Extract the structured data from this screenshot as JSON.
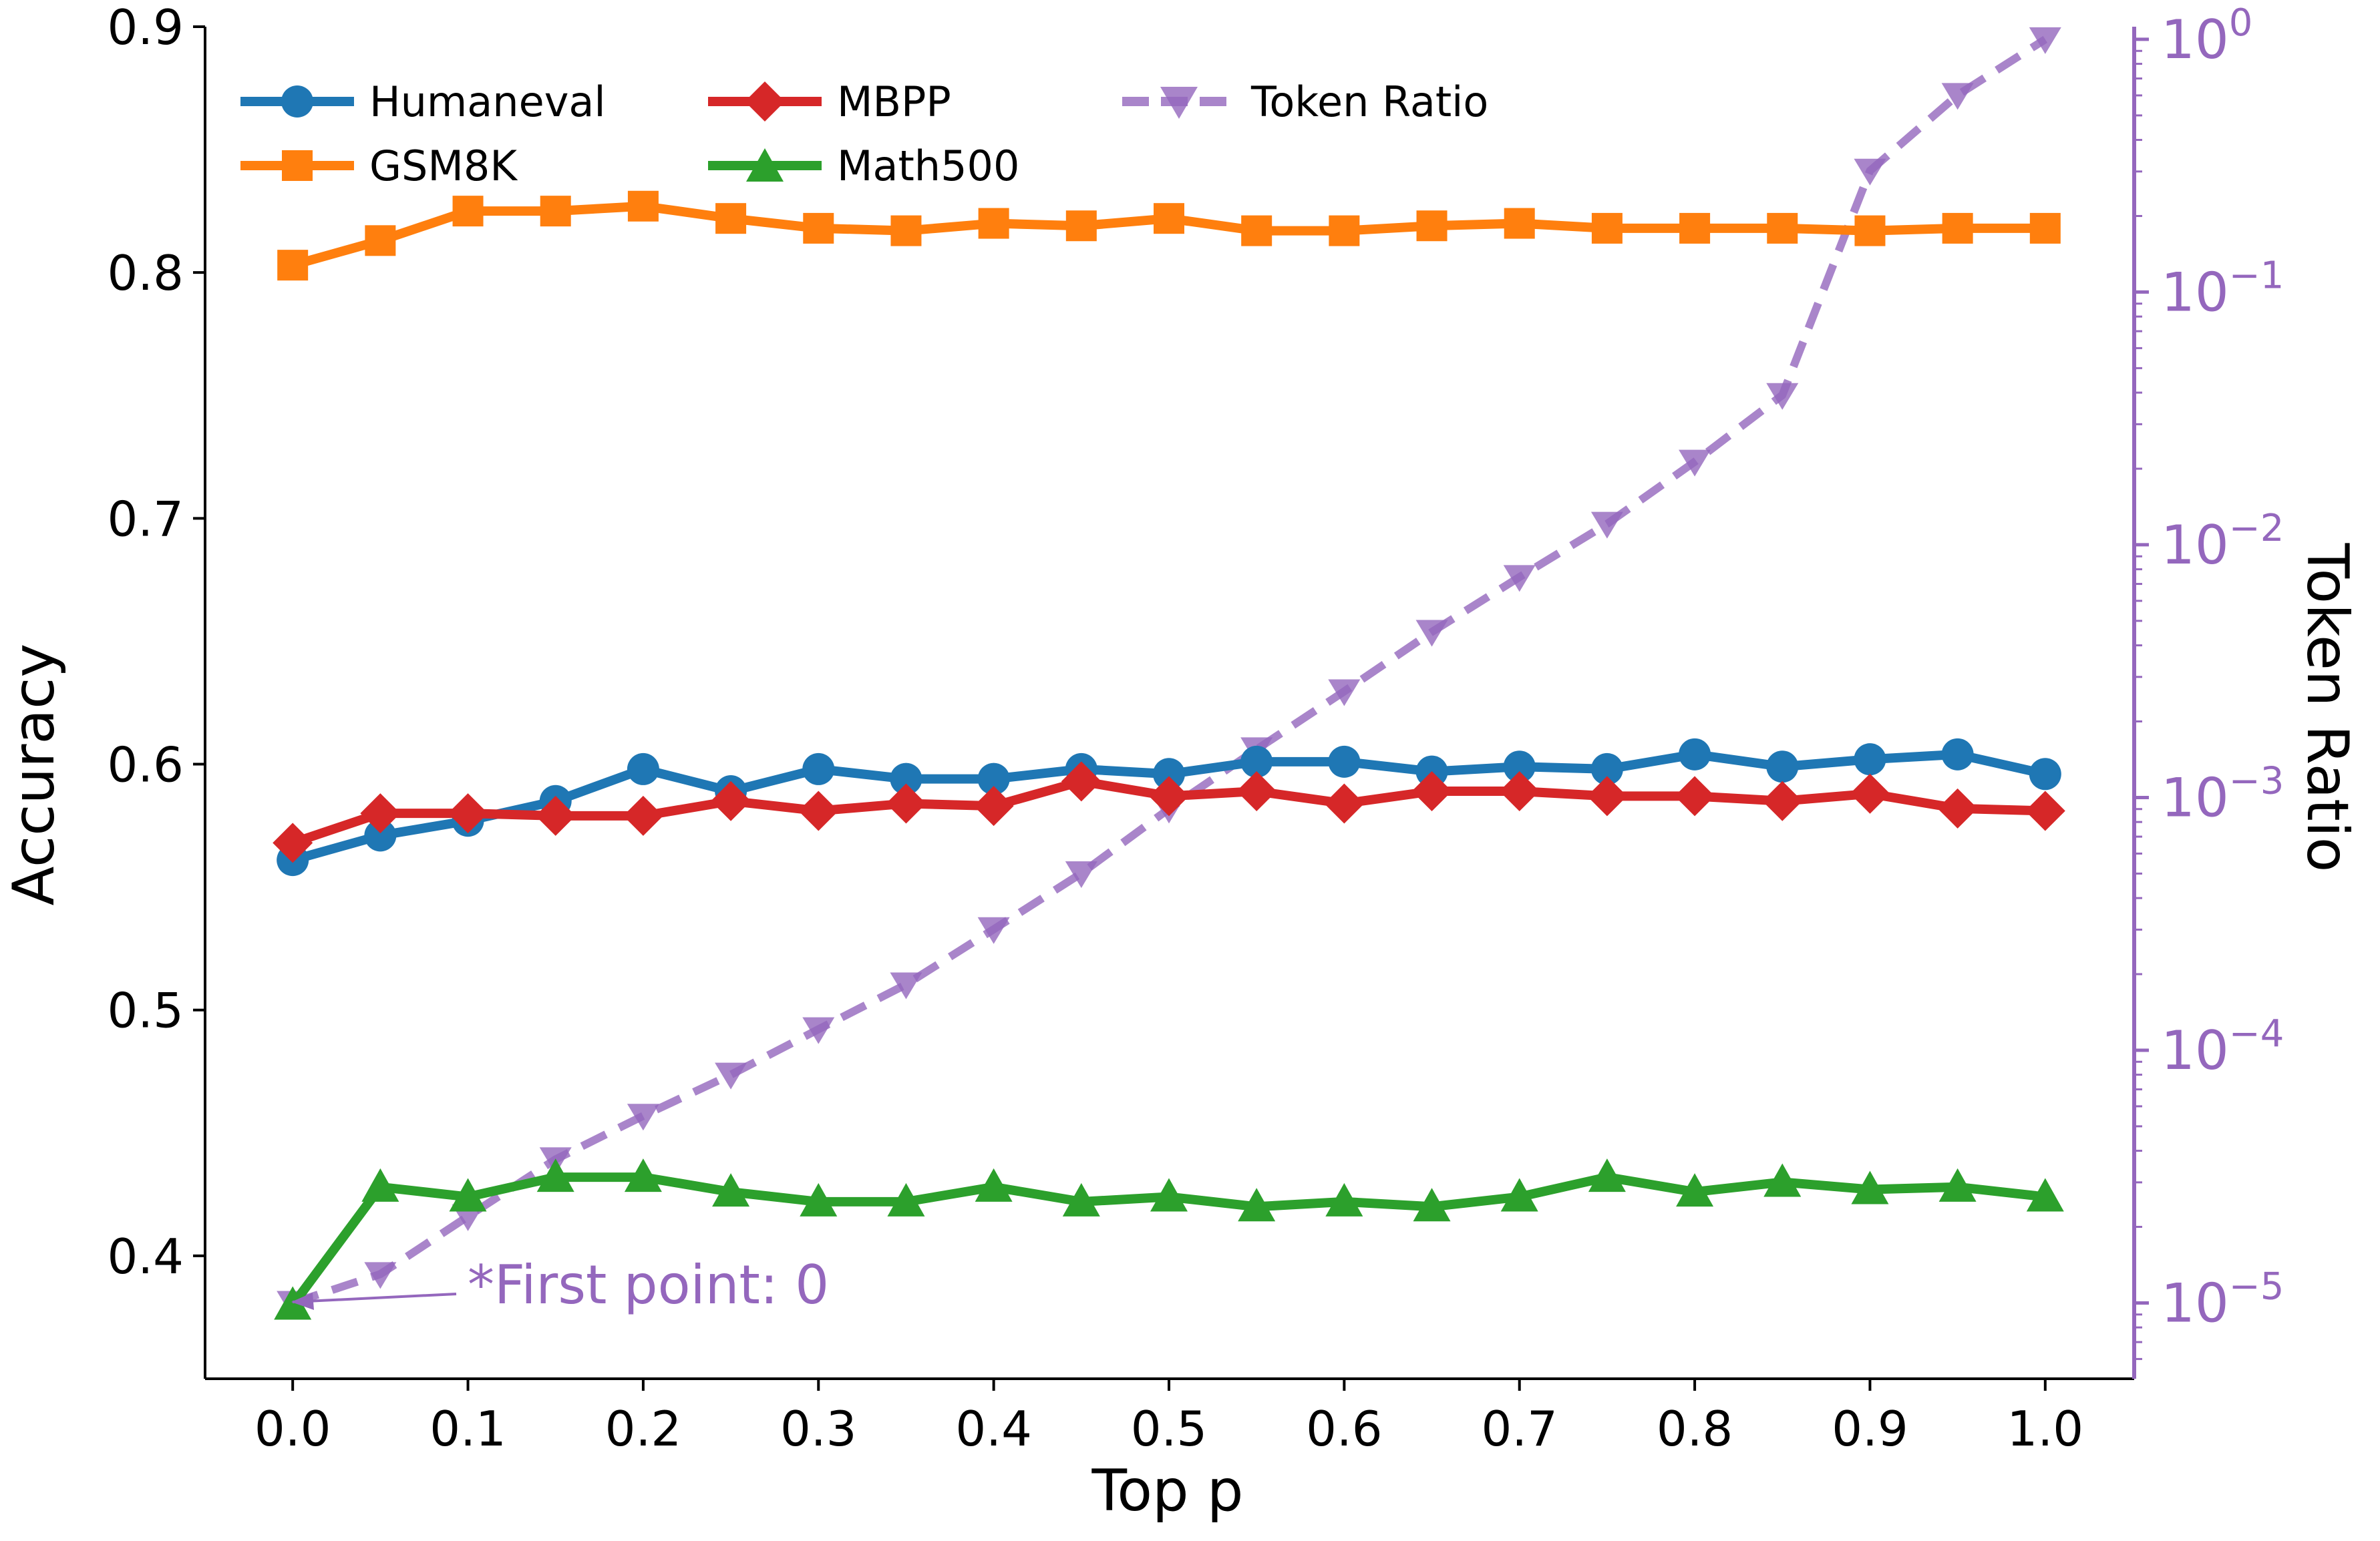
{
  "chart_data": {
    "type": "line",
    "title": "",
    "xlabel": "Top p",
    "ylabel": "Accuracy",
    "y2label": "Token Ratio",
    "xlim": [
      -0.05,
      1.05
    ],
    "ylim": [
      0.35,
      0.9
    ],
    "y2lim_log10": [
      -5.3,
      0.05
    ],
    "x_ticks": [
      "0.0",
      "0.1",
      "0.2",
      "0.3",
      "0.4",
      "0.5",
      "0.6",
      "0.7",
      "0.8",
      "0.9",
      "1.0"
    ],
    "y_ticks": [
      "0.4",
      "0.5",
      "0.6",
      "0.7",
      "0.8",
      "0.9"
    ],
    "y2_ticks": [
      {
        "base": "10",
        "exp": "0"
      },
      {
        "base": "10",
        "exp": "−1"
      },
      {
        "base": "10",
        "exp": "−2"
      },
      {
        "base": "10",
        "exp": "−3"
      },
      {
        "base": "10",
        "exp": "−4"
      },
      {
        "base": "10",
        "exp": "−5"
      }
    ],
    "x": [
      0.0,
      0.05,
      0.1,
      0.15,
      0.2,
      0.25,
      0.3,
      0.35,
      0.4,
      0.45,
      0.5,
      0.55,
      0.6,
      0.65,
      0.7,
      0.75,
      0.8,
      0.85,
      0.9,
      0.95,
      1.0
    ],
    "series": [
      {
        "name": "Humaneval",
        "axis": "left",
        "color": "#1f77b4",
        "marker": "circle",
        "values": [
          0.561,
          0.571,
          0.577,
          0.585,
          0.598,
          0.589,
          0.598,
          0.594,
          0.594,
          0.598,
          0.596,
          0.601,
          0.601,
          0.597,
          0.599,
          0.598,
          0.604,
          0.599,
          0.602,
          0.604,
          0.596
        ]
      },
      {
        "name": "GSM8K",
        "axis": "left",
        "color": "#ff7f0e",
        "marker": "square",
        "values": [
          0.803,
          0.813,
          0.825,
          0.825,
          0.827,
          0.822,
          0.818,
          0.817,
          0.82,
          0.819,
          0.822,
          0.817,
          0.817,
          0.819,
          0.82,
          0.818,
          0.818,
          0.818,
          0.817,
          0.818,
          0.818
        ]
      },
      {
        "name": "MBPP",
        "axis": "left",
        "color": "#d62728",
        "marker": "diamond",
        "values": [
          0.568,
          0.58,
          0.58,
          0.579,
          0.579,
          0.585,
          0.581,
          0.584,
          0.583,
          0.593,
          0.587,
          0.589,
          0.584,
          0.589,
          0.589,
          0.587,
          0.587,
          0.585,
          0.588,
          0.582,
          0.581
        ]
      },
      {
        "name": "Math500",
        "axis": "left",
        "color": "#2ca02c",
        "marker": "triangle-up",
        "values": [
          0.38,
          0.428,
          0.424,
          0.432,
          0.432,
          0.426,
          0.422,
          0.422,
          0.428,
          0.422,
          0.424,
          0.42,
          0.422,
          0.42,
          0.424,
          0.432,
          0.426,
          0.43,
          0.427,
          0.428,
          0.424
        ]
      },
      {
        "name": "Token Ratio",
        "axis": "right",
        "color": "#9467bd",
        "marker": "triangle-down",
        "dashed": true,
        "values": [
          1e-05,
          1.3e-05,
          2.2e-05,
          3.7e-05,
          5.5e-05,
          8e-05,
          0.000121,
          0.000182,
          0.000301,
          0.000501,
          0.000902,
          0.00155,
          0.00263,
          0.00452,
          0.00745,
          0.0121,
          0.0213,
          0.0391,
          0.302,
          0.602,
          1.0
        ]
      }
    ],
    "legend": {
      "placement": "top-left",
      "columns": 3
    },
    "annotation": {
      "text": "*First point: 0",
      "color": "#9467bd",
      "points_to": {
        "x": 0.0,
        "y": 1e-05
      }
    }
  }
}
